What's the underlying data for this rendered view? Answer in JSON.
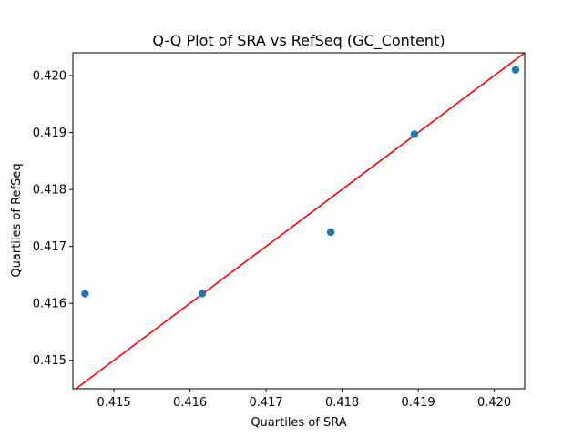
{
  "chart_data": {
    "type": "scatter",
    "title": "Q-Q Plot of SRA vs RefSeq (GC_Content)",
    "xlabel": "Quartiles of SRA",
    "ylabel": "Quartiles of RefSeq",
    "xlim": [
      0.41446,
      0.4204
    ],
    "ylim": [
      0.4145,
      0.4204
    ],
    "xticks": [
      0.415,
      0.416,
      0.417,
      0.418,
      0.419,
      0.42
    ],
    "xtick_labels": [
      "0.415",
      "0.416",
      "0.417",
      "0.418",
      "0.419",
      "0.420"
    ],
    "yticks": [
      0.415,
      0.416,
      0.417,
      0.418,
      0.419,
      0.42
    ],
    "ytick_labels": [
      "0.415",
      "0.416",
      "0.417",
      "0.418",
      "0.419",
      "0.420"
    ],
    "grid": false,
    "points": [
      {
        "x": 0.41462,
        "y": 0.41617
      },
      {
        "x": 0.41616,
        "y": 0.41617
      },
      {
        "x": 0.41785,
        "y": 0.41725
      },
      {
        "x": 0.41895,
        "y": 0.41897
      },
      {
        "x": 0.42028,
        "y": 0.4201
      }
    ],
    "reference_line": {
      "slope": 1,
      "intercept": 0
    },
    "point_color": "#1f77b4",
    "line_color": "#ff0000"
  }
}
